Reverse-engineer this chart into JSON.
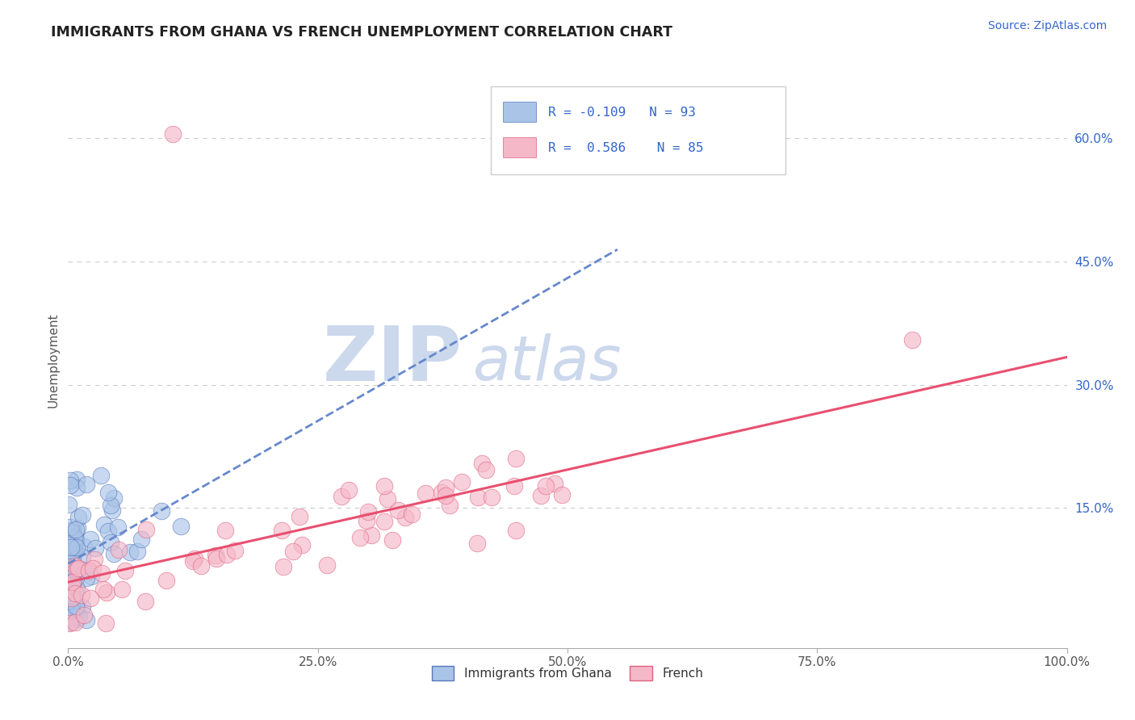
{
  "title": "IMMIGRANTS FROM GHANA VS FRENCH UNEMPLOYMENT CORRELATION CHART",
  "source": "Source: ZipAtlas.com",
  "ylabel": "Unemployment",
  "xlim": [
    0,
    1.0
  ],
  "ylim": [
    -0.02,
    0.68
  ],
  "xticks": [
    0.0,
    0.25,
    0.5,
    0.75,
    1.0
  ],
  "xticklabels": [
    "0.0%",
    "25.0%",
    "50.0%",
    "75.0%",
    "100.0%"
  ],
  "ytick_positions": [
    0.15,
    0.3,
    0.45,
    0.6
  ],
  "yticklabels_right": [
    "15.0%",
    "30.0%",
    "45.0%",
    "60.0%"
  ],
  "color_blue": "#aac4e8",
  "color_blue_dark": "#5577bb",
  "color_pink": "#f5b8c8",
  "color_pink_dark": "#e06080",
  "color_line_blue": "#6688cc",
  "color_line_pink": "#e85070",
  "watermark_zip": "ZIP",
  "watermark_atlas": "atlas",
  "watermark_color": "#ccd8ec",
  "background_color": "#ffffff",
  "grid_color": "#cccccc",
  "title_color": "#222222",
  "axis_label_color": "#555555",
  "source_color": "#3366cc",
  "legend_text_color": "#3366cc",
  "r1": "-0.109",
  "n1": "93",
  "r2": "0.586",
  "n2": "85",
  "legend_label_blue": "Immigrants from Ghana",
  "legend_label_pink": "French"
}
